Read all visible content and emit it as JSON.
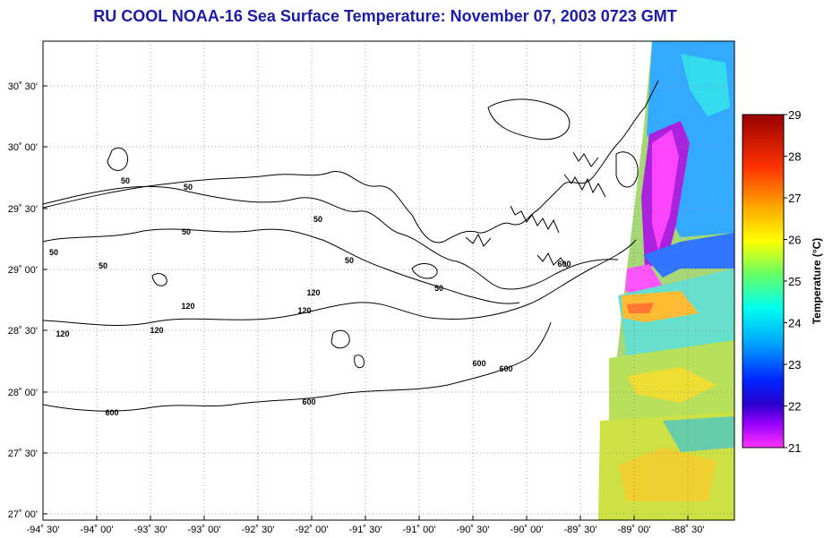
{
  "title": "RU COOL  NOAA-16  Sea Surface Temperature:  November 07, 2003 0723 GMT",
  "map": {
    "y_ticks": [
      "30˚ 30'",
      "30˚ 00'",
      "29˚ 30'",
      "29˚ 00'",
      "28˚ 30'",
      "28˚ 00'",
      "27˚ 30'",
      "27˚ 00'"
    ],
    "x_ticks": [
      "-94˚ 30'",
      "-94˚ 00'",
      "-93˚ 30'",
      "-93˚ 00'",
      "-92˚ 30'",
      "-92˚ 00'",
      "-91˚ 30'",
      "-91˚ 00'",
      "-90˚ 30'",
      "-90˚ 00'",
      "-89˚ 30'",
      "-89˚ 00'",
      "-88˚ 30'"
    ],
    "lon_range": [
      -94.5,
      -88.25
    ],
    "lat_range": [
      26.97,
      30.77
    ],
    "grid": true,
    "contour_labels": [
      "50",
      "50",
      "50",
      "50",
      "50",
      "50",
      "50",
      "50",
      "120",
      "120",
      "120",
      "120",
      "120",
      "600",
      "600",
      "600",
      "600",
      "600"
    ]
  },
  "colorbar": {
    "label": "Temperature (°C)",
    "ticks": [
      "29",
      "28",
      "27",
      "26",
      "25",
      "24",
      "23",
      "22",
      "21"
    ],
    "range": [
      21,
      29
    ],
    "colors": [
      "#ff33ff",
      "#4400cc",
      "#0033ff",
      "#00aaff",
      "#00ffee",
      "#66ff66",
      "#ffff00",
      "#ffaa00",
      "#ff3300",
      "#aa0000"
    ]
  }
}
